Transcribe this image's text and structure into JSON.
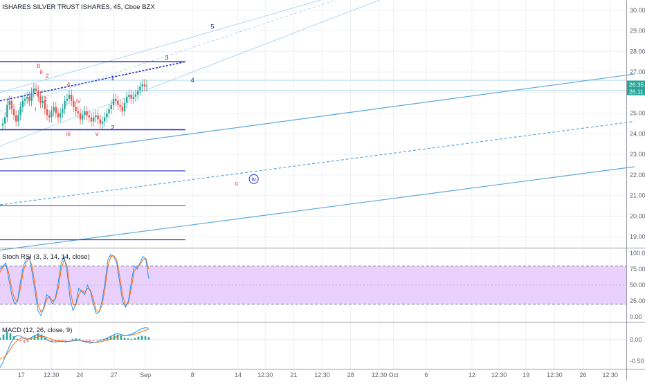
{
  "header": {
    "title": "ISHARES SILVER TRUST ISHARES, 45, Cboe BZX"
  },
  "colors": {
    "channel": "#5ba8d9",
    "channel_light": "#a9d3ee",
    "level": "#2c2cc4",
    "wave_blue": "#2c2cc4",
    "wave_red": "#e0454a",
    "candle_up": "#26a69a",
    "candle_down": "#ef5350",
    "rsi_band": "#e6c8fb",
    "k_line": "#2196f3",
    "d_line": "#ff6d00",
    "grid": "#eef0f3",
    "price_tag_green": "#26a69a"
  },
  "main_panel": {
    "price_axis": [
      "30.00",
      "29.00",
      "28.00",
      "27.00",
      "26.00",
      "25.00",
      "24.00",
      "23.00",
      "22.00",
      "21.00",
      "20.00",
      "19.00"
    ],
    "current_price_tags": [
      "26.35",
      "26.11"
    ],
    "wave_labels": [
      {
        "text": "1",
        "date": 7.9,
        "price": 26.6,
        "color": "blue"
      },
      {
        "text": "2",
        "date": 7.9,
        "price": 24.2,
        "color": "blue"
      },
      {
        "text": "3",
        "date": 11.7,
        "price": 27.6,
        "color": "blue"
      },
      {
        "text": "4",
        "date": 13.5,
        "price": 26.5,
        "color": "blue"
      },
      {
        "text": "5",
        "date": 14.9,
        "price": 29.1,
        "color": "blue"
      },
      {
        "text": "iv",
        "date": 17.8,
        "price": 21.7,
        "color": "blue",
        "circled": true
      },
      {
        "text": "b",
        "date": 2.7,
        "price": 27.2,
        "color": "red"
      },
      {
        "text": "ii",
        "date": 2.9,
        "price": 26.9,
        "color": "red"
      },
      {
        "text": "2",
        "date": 3.3,
        "price": 26.7,
        "color": "red"
      },
      {
        "text": "4",
        "date": 4.8,
        "price": 26.3,
        "color": "red"
      },
      {
        "text": "iv",
        "date": 5.5,
        "price": 25.5,
        "color": "red"
      },
      {
        "text": "i",
        "date": 2.5,
        "price": 25.1,
        "color": "red"
      },
      {
        "text": "1",
        "date": 3.2,
        "price": 25.6,
        "color": "red"
      },
      {
        "text": "iii",
        "date": 4.8,
        "price": 23.9,
        "color": "red"
      },
      {
        "text": "v",
        "date": 6.8,
        "price": 23.9,
        "color": "red"
      },
      {
        "text": "c",
        "date": 16.6,
        "price": 21.5,
        "color": "red"
      }
    ]
  },
  "stoch_panel": {
    "legend": "Stoch RSI (3, 3, 14, 14, close)",
    "axis": [
      "100.00",
      "75.00",
      "50.00",
      "25.00",
      "0.00"
    ],
    "upper_band": 80,
    "lower_band": 20
  },
  "macd_panel": {
    "legend": "MACD (12, 26, close, 9)",
    "axis": [
      "0.00",
      "-0.50"
    ]
  },
  "time_axis": [
    {
      "label": "17",
      "date": 1.5
    },
    {
      "label": "12:30",
      "date": 3.6
    },
    {
      "label": "24",
      "date": 5.6
    },
    {
      "label": "27",
      "date": 8.0
    },
    {
      "label": "Sep",
      "date": 10.2
    },
    {
      "label": "8",
      "date": 13.5
    },
    {
      "label": "14",
      "date": 16.7
    },
    {
      "label": "12:30",
      "date": 18.6
    },
    {
      "label": "21",
      "date": 20.6
    },
    {
      "label": "12:30",
      "date": 22.6
    },
    {
      "label": "28",
      "date": 24.6
    },
    {
      "label": "12:30",
      "date": 26.6
    },
    {
      "label": "Oct",
      "date": 27.6
    },
    {
      "label": "6",
      "date": 29.9
    },
    {
      "label": "12",
      "date": 33.1
    },
    {
      "label": "12:30",
      "date": 35.0
    },
    {
      "label": "19",
      "date": 36.9
    },
    {
      "label": "12:30",
      "date": 38.9
    },
    {
      "label": "26",
      "date": 40.9
    },
    {
      "label": "12:30",
      "date": 42.8
    }
  ],
  "chart_data": {
    "type": "candlestick",
    "x_unit": "days from first visible bar",
    "price_range": [
      18.5,
      30.5
    ],
    "channel_lines": [
      {
        "kind": "solid",
        "start": [
          0,
          22.75
        ],
        "end": [
          44.5,
          26.9
        ]
      },
      {
        "kind": "dashed",
        "start": [
          0,
          20.55
        ],
        "end": [
          44.5,
          24.6
        ]
      },
      {
        "kind": "solid",
        "start": [
          0,
          18.35
        ],
        "end": [
          44.5,
          22.4
        ]
      },
      {
        "kind": "trend-dashed",
        "start": [
          0,
          25.6
        ],
        "end": [
          13.0,
          27.5
        ]
      },
      {
        "kind": "fan-light",
        "start": [
          0,
          23.4
        ],
        "end": [
          27.0,
          30.6
        ]
      },
      {
        "kind": "fan-light-dashed",
        "start": [
          0,
          25.1
        ],
        "end": [
          24.0,
          30.6
        ]
      },
      {
        "kind": "fan-light",
        "start": [
          0,
          26.0
        ],
        "end": [
          23.0,
          30.6
        ]
      }
    ],
    "horizontal_levels": [
      {
        "price": 27.5,
        "x_end": 13.0,
        "weight": "thick"
      },
      {
        "price": 24.2,
        "x_end": 13.0,
        "weight": "thick"
      },
      {
        "price": 22.2,
        "x_end": 13.0
      },
      {
        "price": 20.5,
        "x_end": 13.0
      },
      {
        "price": 18.85,
        "x_end": 13.0
      }
    ],
    "horizontal_light_levels": [
      {
        "price": 26.6
      },
      {
        "price": 26.1
      }
    ],
    "close_series": [
      24.5,
      24.8,
      25.4,
      25.6,
      25.2,
      24.9,
      24.6,
      24.9,
      25.3,
      25.6,
      25.7,
      25.8,
      25.6,
      26.0,
      26.2,
      26.1,
      25.8,
      25.5,
      25.6,
      25.2,
      24.9,
      24.8,
      25.1,
      25.3,
      25.0,
      24.8,
      25.0,
      25.2,
      25.6,
      25.7,
      25.9,
      25.6,
      25.3,
      25.1,
      25.0,
      24.7,
      24.9,
      25.1,
      24.9,
      24.8,
      24.6,
      24.8,
      24.9,
      24.7,
      24.5,
      24.6,
      24.8,
      25.0,
      25.2,
      25.4,
      25.7,
      25.6,
      25.4,
      25.3,
      25.1,
      25.5,
      25.8,
      25.9,
      25.7,
      25.8,
      25.9,
      26.1,
      26.3,
      26.4,
      26.3,
      26.35
    ],
    "stoch_k": [
      75,
      80,
      85,
      60,
      35,
      20,
      25,
      55,
      80,
      90,
      95,
      70,
      40,
      10,
      2,
      15,
      35,
      30,
      20,
      30,
      55,
      85,
      95,
      70,
      30,
      10,
      20,
      45,
      40,
      35,
      50,
      40,
      20,
      5,
      8,
      25,
      55,
      90,
      98,
      95,
      85,
      55,
      25,
      15,
      25,
      55,
      80,
      75,
      85,
      95,
      90,
      60
    ],
    "stoch_d": [
      70,
      78,
      82,
      70,
      45,
      28,
      25,
      45,
      72,
      86,
      92,
      80,
      50,
      20,
      8,
      12,
      28,
      32,
      25,
      28,
      45,
      75,
      90,
      80,
      45,
      20,
      18,
      35,
      42,
      38,
      45,
      42,
      28,
      10,
      8,
      18,
      45,
      80,
      95,
      96,
      90,
      65,
      35,
      18,
      22,
      45,
      72,
      78,
      82,
      90,
      92,
      75
    ],
    "macd_hist": [
      0.05,
      0.12,
      0.18,
      0.15,
      0.08,
      0.02,
      -0.04,
      -0.08,
      -0.06,
      0.03,
      0.1,
      0.15,
      0.12,
      0.05,
      -0.02,
      -0.05,
      -0.04,
      -0.03,
      -0.02,
      -0.03,
      -0.01,
      0.02,
      0.03,
      0.02,
      -0.01,
      -0.03,
      -0.05,
      -0.04,
      -0.02,
      0.01,
      0.02,
      0.05,
      0.08,
      0.1,
      0.12,
      0.09,
      0.05,
      0.03,
      0.02,
      0.04,
      0.07,
      0.09,
      0.08,
      0.06
    ],
    "macd_line": [
      -0.65,
      -0.5,
      -0.3,
      -0.1,
      0.05,
      0.1,
      0.08,
      0.03,
      0.0,
      0.05,
      0.1,
      0.12,
      0.1,
      0.04,
      -0.02,
      -0.05,
      -0.05,
      -0.04,
      -0.04,
      -0.05,
      -0.04,
      -0.02,
      -0.01,
      -0.02,
      -0.04,
      -0.06,
      -0.08,
      -0.07,
      -0.05,
      -0.02,
      0.0,
      0.04,
      0.08,
      0.12,
      0.15,
      0.12,
      0.1,
      0.11,
      0.13,
      0.17,
      0.22,
      0.26,
      0.28,
      0.27
    ],
    "macd_signal": [
      -0.45,
      -0.42,
      -0.34,
      -0.22,
      -0.1,
      -0.02,
      0.03,
      0.04,
      0.03,
      0.03,
      0.05,
      0.07,
      0.08,
      0.07,
      0.04,
      0.01,
      -0.02,
      -0.03,
      -0.03,
      -0.04,
      -0.04,
      -0.03,
      -0.02,
      -0.02,
      -0.03,
      -0.04,
      -0.05,
      -0.06,
      -0.06,
      -0.05,
      -0.03,
      -0.01,
      0.02,
      0.05,
      0.08,
      0.1,
      0.1,
      0.1,
      0.11,
      0.13,
      0.16,
      0.19,
      0.22,
      0.24
    ]
  }
}
